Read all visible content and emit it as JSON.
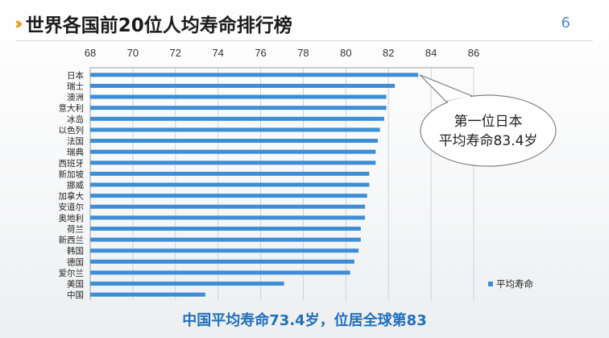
{
  "slide": {
    "title": "世界各国前20位人均寿命排行榜",
    "page_number": "6",
    "footer": "中国平均寿命73.4岁，位居全球第83"
  },
  "chart_data": {
    "type": "bar",
    "orientation": "horizontal",
    "categories": [
      "日本",
      "瑞士",
      "澳洲",
      "意大利",
      "冰岛",
      "以色列",
      "法国",
      "瑞典",
      "西班牙",
      "新加坡",
      "挪威",
      "加拿大",
      "安道尔",
      "奥地利",
      "荷兰",
      "新西兰",
      "韩国",
      "德国",
      "爱尔兰",
      "美国",
      "中国"
    ],
    "series": [
      {
        "name": "平均寿命",
        "values": [
          83.4,
          82.3,
          81.9,
          81.9,
          81.8,
          81.6,
          81.5,
          81.4,
          81.4,
          81.1,
          81.1,
          81.0,
          80.9,
          80.9,
          80.7,
          80.7,
          80.6,
          80.4,
          80.2,
          77.1,
          73.4
        ]
      }
    ],
    "xlim": [
      68,
      86
    ],
    "xticks": [
      68,
      70,
      72,
      74,
      76,
      78,
      80,
      82,
      84,
      86
    ],
    "axis_position": "top",
    "grid": "vertical",
    "legend": "right",
    "bar_color": "#3d8ed6",
    "callout": "第一位日本\n平均寿命83.4岁"
  }
}
